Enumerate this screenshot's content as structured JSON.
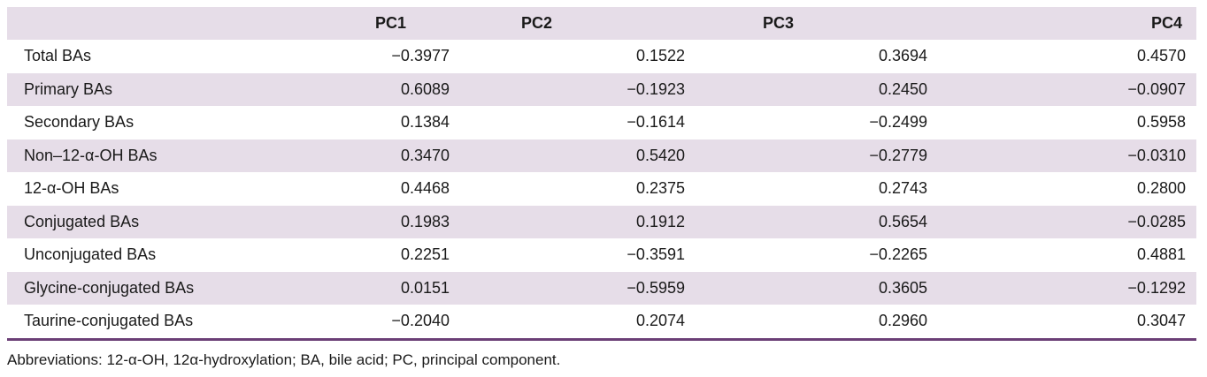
{
  "table": {
    "headers": [
      "",
      "PC1",
      "PC2",
      "PC3",
      "PC4"
    ],
    "rows": [
      {
        "label": "Total BAs",
        "values": [
          "−0.3977",
          "0.1522",
          "0.3694",
          "0.4570"
        ]
      },
      {
        "label": "Primary BAs",
        "values": [
          "0.6089",
          "−0.1923",
          "0.2450",
          "−0.0907"
        ]
      },
      {
        "label": "Secondary BAs",
        "values": [
          "0.1384",
          "−0.1614",
          "−0.2499",
          "0.5958"
        ]
      },
      {
        "label": "Non–12-α-OH BAs",
        "values": [
          "0.3470",
          "0.5420",
          "−0.2779",
          "−0.0310"
        ]
      },
      {
        "label": "12-α-OH BAs",
        "values": [
          "0.4468",
          "0.2375",
          "0.2743",
          "0.2800"
        ]
      },
      {
        "label": "Conjugated BAs",
        "values": [
          "0.1983",
          "0.1912",
          "0.5654",
          "−0.0285"
        ]
      },
      {
        "label": "Unconjugated BAs",
        "values": [
          "0.2251",
          "−0.3591",
          "−0.2265",
          "0.4881"
        ]
      },
      {
        "label": "Glycine-conjugated BAs",
        "values": [
          "0.0151",
          "−0.5959",
          "0.3605",
          "−0.1292"
        ]
      },
      {
        "label": "Taurine-conjugated BAs",
        "values": [
          "−0.2040",
          "0.2074",
          "0.2960",
          "0.3047"
        ]
      }
    ]
  },
  "footnote": "Abbreviations: 12-α-OH, 12α-hydroxylation; BA, bile acid; PC, principal component.",
  "colors": {
    "band": "#e6dde8",
    "rule": "#6b3f76"
  }
}
